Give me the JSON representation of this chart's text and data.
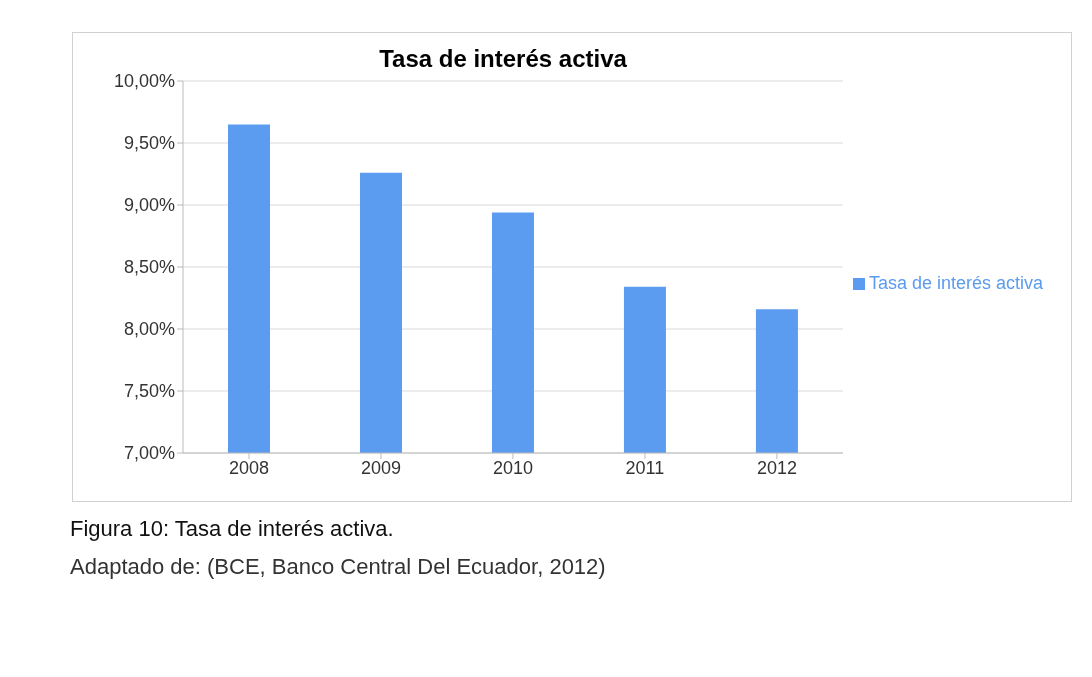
{
  "chart_data": {
    "type": "bar",
    "title": "Tasa de interés activa",
    "categories": [
      "2008",
      "2009",
      "2010",
      "2011",
      "2012"
    ],
    "series": [
      {
        "name": "Tasa de interés activa",
        "color": "#5b9bf0",
        "values": [
          9.65,
          9.26,
          8.94,
          8.34,
          8.16
        ]
      }
    ],
    "ylim": [
      7,
      10
    ],
    "yticks": [
      {
        "value": 7,
        "label": "7,00%"
      },
      {
        "value": 7.5,
        "label": "7,50%"
      },
      {
        "value": 8,
        "label": "8,00%"
      },
      {
        "value": 8.5,
        "label": "8,50%"
      },
      {
        "value": 9,
        "label": "9,00%"
      },
      {
        "value": 9.5,
        "label": "9,50%"
      },
      {
        "value": 10,
        "label": "10,00%"
      }
    ],
    "grid": "y",
    "legend": "right",
    "annotations": [
      "Figura 10: Tasa de interés activa.",
      "Adaptado de: (BCE, Banco Central Del Ecuador, 2012)"
    ]
  }
}
